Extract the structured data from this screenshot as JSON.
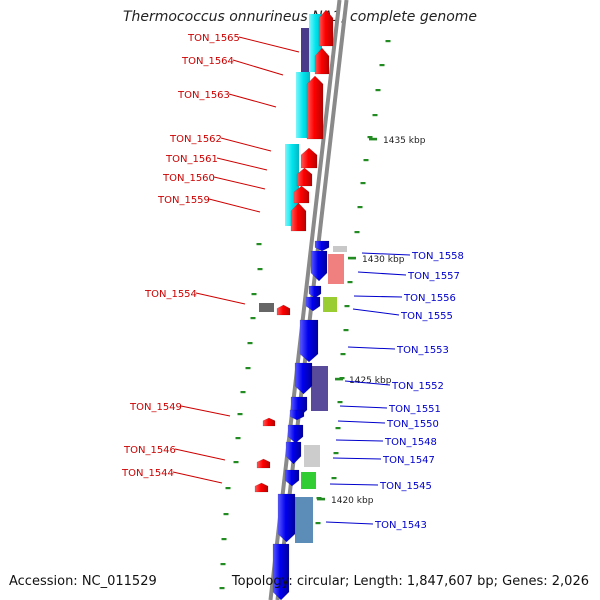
{
  "title": "Thermococcus onnurineus NA1, complete genome",
  "accession": "Accession: NC_011529",
  "topology": "Topology: circular; Length: 1,847,607 bp; Genes: 2,026",
  "colors": {
    "backbone": "#808080",
    "forward_gene_label": "#cc0000",
    "reverse_gene_label": "#0000cc",
    "forward_gene": "#ff0000",
    "reverse_gene": "#0000ee",
    "cyan_feature": "#00e5ee",
    "tick": "#228b22"
  },
  "scale_labels": [
    "1435 kbp",
    "1430 kbp",
    "1425 kbp",
    "1420 kbp"
  ],
  "forward_genes": [
    "TON_1565",
    "TON_1564",
    "TON_1563",
    "TON_1562",
    "TON_1561",
    "TON_1560",
    "TON_1559",
    "TON_1554",
    "TON_1549",
    "TON_1546",
    "TON_1544"
  ],
  "reverse_genes": [
    "TON_1558",
    "TON_1557",
    "TON_1556",
    "TON_1555",
    "TON_1553",
    "TON_1552",
    "TON_1551",
    "TON_1550",
    "TON_1548",
    "TON_1547",
    "TON_1545",
    "TON_1543"
  ]
}
